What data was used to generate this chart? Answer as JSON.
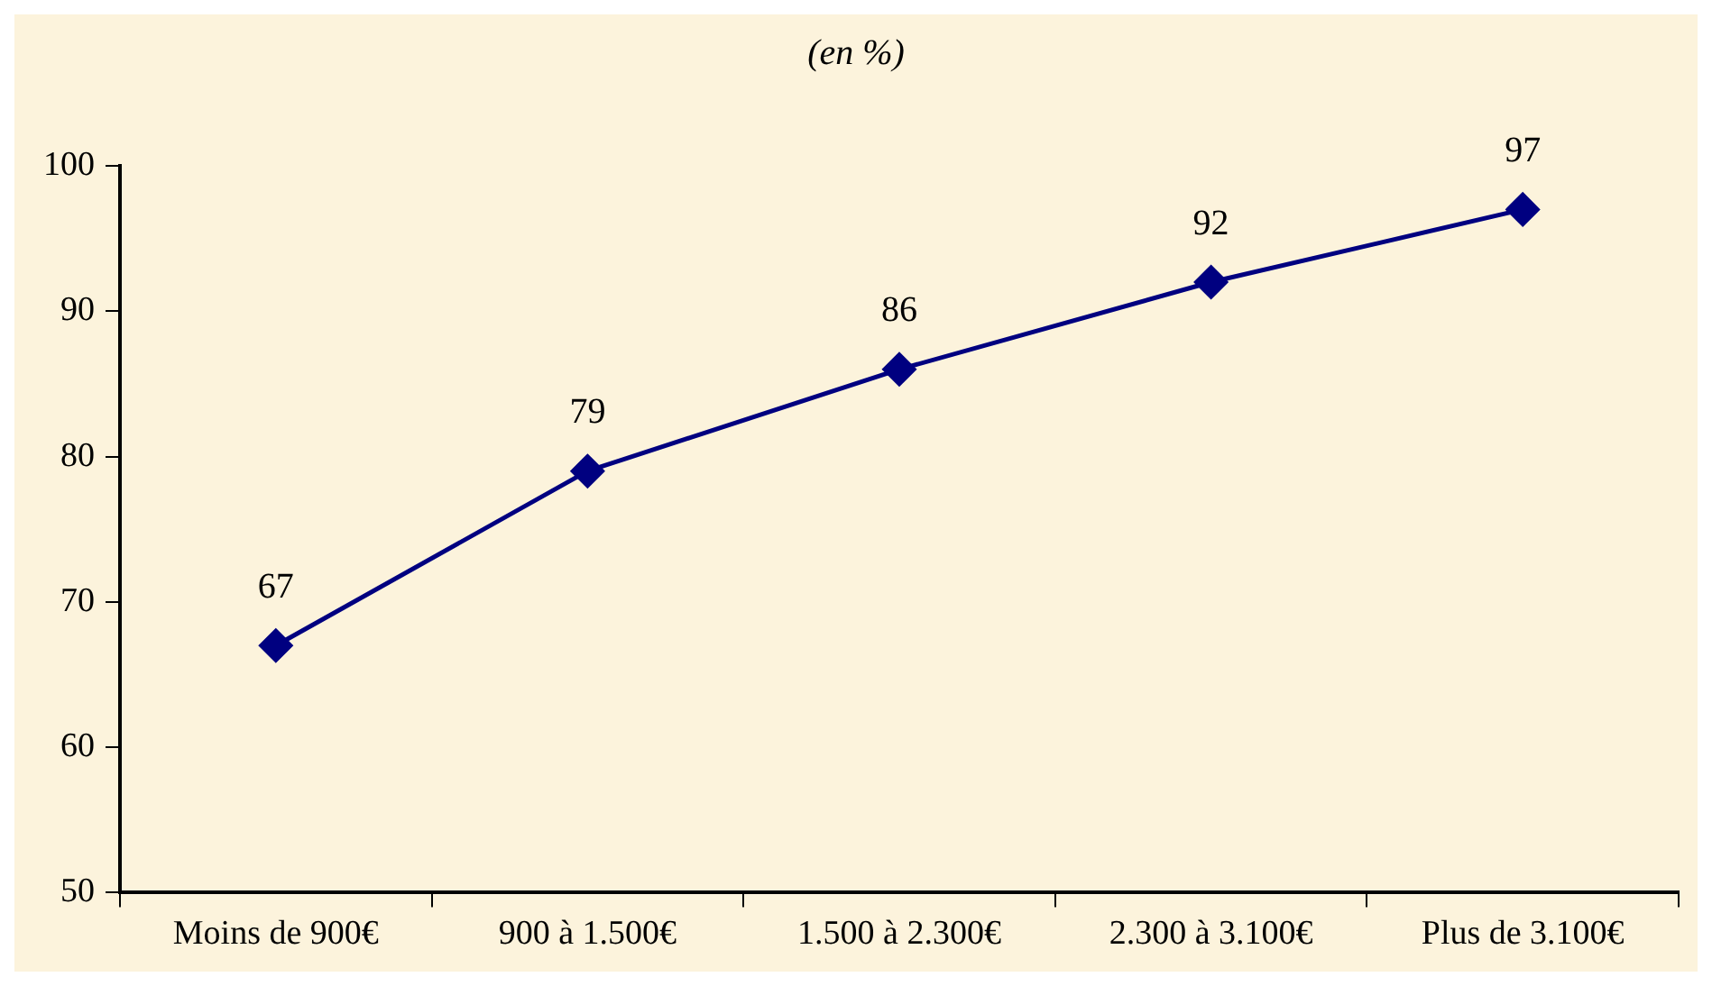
{
  "chart_data": {
    "type": "line",
    "title": "(en %)",
    "categories": [
      "Moins de 900€",
      "900 à 1.500€",
      "1.500 à 2.300€",
      "2.300 à 3.100€",
      "Plus de 3.100€"
    ],
    "series": [
      {
        "color": "#000080",
        "values": [
          67,
          79,
          86,
          92,
          97
        ]
      }
    ],
    "ylim": [
      50,
      100
    ],
    "yticks": [
      50,
      60,
      70,
      80,
      90,
      100
    ],
    "grid": false,
    "legend": false,
    "marker": "diamond",
    "line_style": "solid",
    "data_labels": true
  }
}
